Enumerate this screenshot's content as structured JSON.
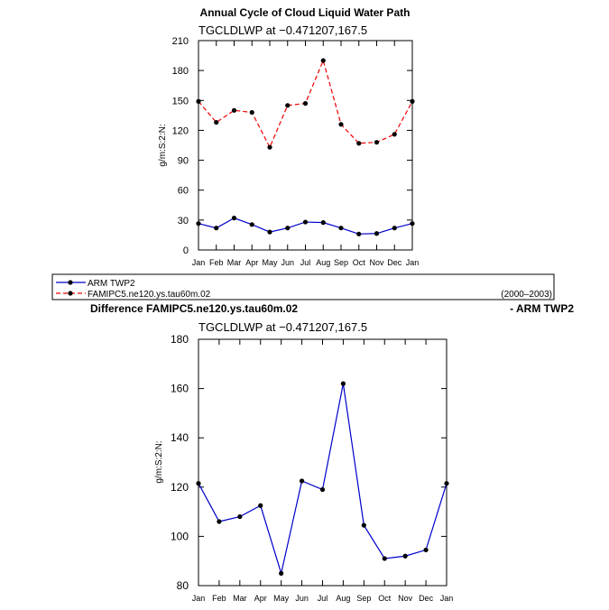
{
  "chart_data": [
    {
      "type": "line",
      "title": "Annual Cycle of Cloud Liquid Water Path",
      "subtitle": "TGCLDLWP  at  −0.471207,167.5",
      "ylabel": "g/m:S:2:N:",
      "xlabel": "",
      "ylim": [
        0,
        210
      ],
      "yticks": [
        "0",
        "30",
        "60",
        "90",
        "120",
        "150",
        "180",
        "210"
      ],
      "categories": [
        "Jan",
        "Feb",
        "Mar",
        "Apr",
        "May",
        "Jun",
        "Jul",
        "Aug",
        "Sep",
        "Oct",
        "Nov",
        "Dec",
        "Jan"
      ],
      "series": [
        {
          "name": "ARM TWP2",
          "color": "#0000cc",
          "dash": "solid",
          "values": [
            26.5,
            22,
            32,
            25.5,
            18,
            22,
            28,
            27.5,
            22,
            16,
            16.5,
            22,
            26.5
          ]
        },
        {
          "name": "FAMIPC5.ne120.ys.tau60m.02",
          "color": "#ee0000",
          "dash": "dashed",
          "values": [
            149,
            128,
            140,
            138,
            103,
            145,
            147,
            190,
            126,
            107,
            108,
            116,
            149
          ]
        }
      ],
      "legend": {
        "entries": [
          "ARM TWP2",
          "FAMIPC5.ne120.ys.tau60m.02"
        ],
        "period": "(2000–2003)",
        "placement": "bottom"
      },
      "grid": false
    },
    {
      "type": "line",
      "title_left": "Difference FAMIPC5.ne120.ys.tau60m.02",
      "title_right": "- ARM TWP2",
      "subtitle": "TGCLDLWP  at  −0.471207,167.5",
      "ylabel": "g/m:S:2:N:",
      "xlabel": "",
      "ylim": [
        80,
        180
      ],
      "yticks": [
        "80",
        "100",
        "120",
        "140",
        "160",
        "180"
      ],
      "categories": [
        "Jan",
        "Feb",
        "Mar",
        "Apr",
        "May",
        "Jun",
        "Jul",
        "Aug",
        "Sep",
        "Oct",
        "Nov",
        "Dec",
        "Jan"
      ],
      "series": [
        {
          "color": "#0000cc",
          "dash": "solid",
          "values": [
            121.5,
            106,
            108,
            112.5,
            85,
            122.5,
            119,
            162,
            104.5,
            91,
            92,
            94.5,
            121.5
          ]
        }
      ],
      "grid": false
    }
  ]
}
